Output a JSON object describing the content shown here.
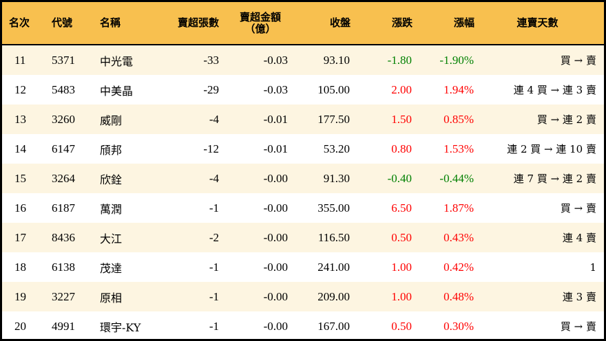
{
  "header": {
    "rank": "名次",
    "code": "代號",
    "name": "名稱",
    "net_sell_lots": "賣超張數",
    "net_sell_amount": "賣超金額",
    "net_sell_amount_unit": "（億）",
    "close": "收盤",
    "change": "漲跌",
    "change_pct": "漲幅",
    "streak": "連賣天數"
  },
  "colors": {
    "header_bg": "#f8c04f",
    "row_alt_bg": "#fdf5e1",
    "up": "#ff0000",
    "down": "#008000"
  },
  "rows": [
    {
      "rank": "11",
      "code": "5371",
      "name": "中光電",
      "lots": "-33",
      "amount": "-0.03",
      "close": "93.10",
      "change": "-1.80",
      "pct": "-1.90%",
      "dir": "down",
      "streak": "買 → 賣"
    },
    {
      "rank": "12",
      "code": "5483",
      "name": "中美晶",
      "lots": "-29",
      "amount": "-0.03",
      "close": "105.00",
      "change": "2.00",
      "pct": "1.94%",
      "dir": "up",
      "streak": "連 4 買 → 連 3 賣"
    },
    {
      "rank": "13",
      "code": "3260",
      "name": "威剛",
      "lots": "-4",
      "amount": "-0.01",
      "close": "177.50",
      "change": "1.50",
      "pct": "0.85%",
      "dir": "up",
      "streak": "買 → 連 2 賣"
    },
    {
      "rank": "14",
      "code": "6147",
      "name": "頎邦",
      "lots": "-12",
      "amount": "-0.01",
      "close": "53.20",
      "change": "0.80",
      "pct": "1.53%",
      "dir": "up",
      "streak": "連 2 買 → 連 10 賣"
    },
    {
      "rank": "15",
      "code": "3264",
      "name": "欣銓",
      "lots": "-4",
      "amount": "-0.00",
      "close": "91.30",
      "change": "-0.40",
      "pct": "-0.44%",
      "dir": "down",
      "streak": "連 7 買 → 連 2 賣"
    },
    {
      "rank": "16",
      "code": "6187",
      "name": "萬潤",
      "lots": "-1",
      "amount": "-0.00",
      "close": "355.00",
      "change": "6.50",
      "pct": "1.87%",
      "dir": "up",
      "streak": "買 → 賣"
    },
    {
      "rank": "17",
      "code": "8436",
      "name": "大江",
      "lots": "-2",
      "amount": "-0.00",
      "close": "116.50",
      "change": "0.50",
      "pct": "0.43%",
      "dir": "up",
      "streak": "連 4 賣"
    },
    {
      "rank": "18",
      "code": "6138",
      "name": "茂達",
      "lots": "-1",
      "amount": "-0.00",
      "close": "241.00",
      "change": "1.00",
      "pct": "0.42%",
      "dir": "up",
      "streak": "1"
    },
    {
      "rank": "19",
      "code": "3227",
      "name": "原相",
      "lots": "-1",
      "amount": "-0.00",
      "close": "209.00",
      "change": "1.00",
      "pct": "0.48%",
      "dir": "up",
      "streak": "連 3 賣"
    },
    {
      "rank": "20",
      "code": "4991",
      "name": "環宇-KY",
      "lots": "-1",
      "amount": "-0.00",
      "close": "167.00",
      "change": "0.50",
      "pct": "0.30%",
      "dir": "up",
      "streak": "買 → 賣"
    }
  ]
}
